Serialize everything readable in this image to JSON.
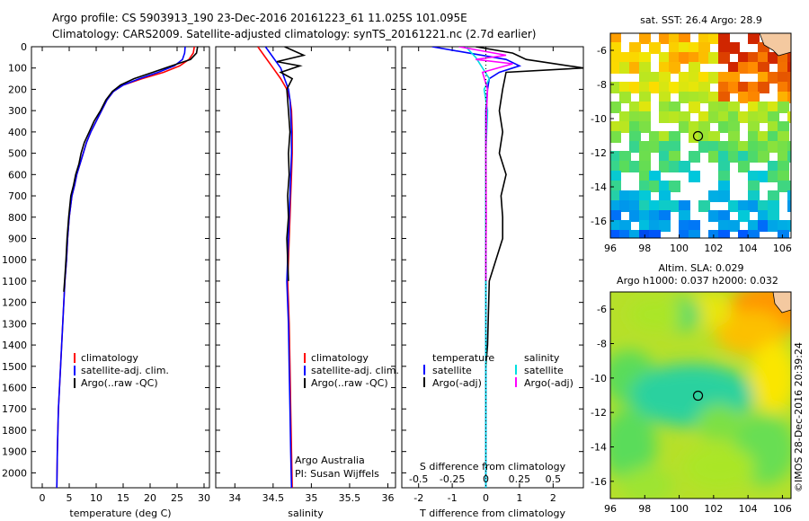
{
  "header": {
    "line1": "Argo profile: CS 5903913_190 23-Dec-2016 20161223_61 11.025S 101.095E",
    "line2": "Climatology: CARS2009. Satellite-adjusted climatology: synTS_20161221.nc (2.7d earlier)"
  },
  "side_label": "©IMOS 28-Dec-2016 20:39:24",
  "colors": {
    "climatology": "#ff0000",
    "satellite": "#0000ff",
    "argo": "#000000",
    "cyan": "#00e0e0",
    "magenta": "#ff00ff"
  },
  "chart_data": [
    {
      "type": "line",
      "id": "temperature",
      "xlabel": "temperature (deg C)",
      "ylabel": "",
      "xlim": [
        -2,
        31
      ],
      "ylim": [
        2070,
        0
      ],
      "xticks": [
        0,
        5,
        10,
        15,
        20,
        25,
        30
      ],
      "yticks": [
        0,
        100,
        200,
        300,
        400,
        500,
        600,
        700,
        800,
        900,
        1000,
        1100,
        1200,
        1300,
        1400,
        1500,
        1600,
        1700,
        1800,
        1900,
        2000
      ],
      "legend": [
        "climatology",
        "satellite-adj. clim.",
        "Argo(..raw -QC)"
      ],
      "series": [
        {
          "name": "climatology",
          "color": "#ff0000",
          "x": [
            28.2,
            28.0,
            27.2,
            25.5,
            22.5,
            18.5,
            15.0,
            13.2,
            12.0,
            11.0,
            10.0,
            9.0,
            8.2,
            7.6,
            7.0,
            6.4,
            6.0,
            5.5,
            5.0,
            4.7,
            4.5,
            4.2,
            4.0,
            3.8,
            3.6,
            3.4,
            3.2,
            3.0,
            2.9,
            2.8,
            2.7
          ],
          "y": [
            0,
            30,
            60,
            90,
            120,
            150,
            180,
            210,
            250,
            300,
            350,
            400,
            450,
            500,
            550,
            600,
            650,
            700,
            800,
            900,
            1000,
            1100,
            1200,
            1300,
            1400,
            1500,
            1600,
            1700,
            1800,
            1900,
            2070
          ]
        },
        {
          "name": "satellite-adj. clim.",
          "color": "#0000ff",
          "x": [
            26.5,
            26.4,
            26.0,
            24.5,
            21.5,
            18.0,
            15.0,
            13.2,
            12.0,
            11.0,
            10.0,
            9.0,
            8.2,
            7.6,
            7.0,
            6.4,
            6.0,
            5.5,
            5.0,
            4.7,
            4.5,
            4.2,
            4.0,
            3.8,
            3.6,
            3.4,
            3.2,
            3.0,
            2.9,
            2.8,
            2.7
          ],
          "y": [
            0,
            30,
            60,
            90,
            120,
            150,
            180,
            210,
            250,
            300,
            350,
            400,
            450,
            500,
            550,
            600,
            650,
            700,
            800,
            900,
            1000,
            1100,
            1200,
            1300,
            1400,
            1500,
            1600,
            1700,
            1800,
            1900,
            2070
          ]
        },
        {
          "name": "Argo(..raw -QC)",
          "color": "#000000",
          "x": [
            28.8,
            28.6,
            27.5,
            24.0,
            20.5,
            17.0,
            14.5,
            13.0,
            11.8,
            10.8,
            9.6,
            8.7,
            7.8,
            7.2,
            6.8,
            6.2,
            5.8,
            5.3,
            4.9,
            4.6,
            4.4,
            4.2,
            4.0
          ],
          "y": [
            0,
            30,
            60,
            90,
            120,
            150,
            180,
            210,
            250,
            300,
            350,
            400,
            450,
            500,
            550,
            600,
            650,
            700,
            800,
            900,
            1000,
            1080,
            1150
          ]
        }
      ]
    },
    {
      "type": "line",
      "id": "salinity",
      "xlabel": "salinity",
      "xlim": [
        33.75,
        36.1
      ],
      "ylim": [
        2070,
        0
      ],
      "xticks": [
        34,
        34.5,
        35,
        35.5,
        36
      ],
      "legend": [
        "climatology",
        "satellite-adj. clim.",
        "Argo(..raw -QC)"
      ],
      "annotation": [
        "Argo Australia",
        "PI: Susan Wijffels"
      ],
      "series": [
        {
          "name": "climatology",
          "color": "#ff0000",
          "x": [
            34.3,
            34.4,
            34.5,
            34.6,
            34.68,
            34.72,
            34.74,
            34.75,
            34.75,
            34.74,
            34.73,
            34.72,
            34.71,
            34.7,
            34.69,
            34.7,
            34.71,
            34.72,
            34.73,
            34.74,
            34.75
          ],
          "y": [
            0,
            50,
            100,
            150,
            200,
            250,
            300,
            400,
            500,
            600,
            700,
            800,
            900,
            1000,
            1100,
            1200,
            1300,
            1500,
            1700,
            1900,
            2070
          ]
        },
        {
          "name": "satellite-adj. clim.",
          "color": "#0000ff",
          "x": [
            34.4,
            34.5,
            34.6,
            34.65,
            34.7,
            34.72,
            34.73,
            34.74,
            34.74,
            34.73,
            34.72,
            34.71,
            34.7,
            34.69,
            34.68,
            34.69,
            34.7,
            34.71,
            34.72,
            34.73,
            34.74
          ],
          "y": [
            0,
            50,
            100,
            150,
            200,
            250,
            300,
            400,
            500,
            600,
            700,
            800,
            900,
            1000,
            1100,
            1200,
            1300,
            1500,
            1700,
            1900,
            2070
          ]
        },
        {
          "name": "Argo(..raw -QC)",
          "color": "#000000",
          "x": [
            34.65,
            34.9,
            34.55,
            34.85,
            34.6,
            34.75,
            34.68,
            34.7,
            34.72,
            34.7,
            34.71,
            34.69,
            34.7,
            34.68,
            34.69,
            34.7
          ],
          "y": [
            0,
            40,
            70,
            90,
            120,
            150,
            200,
            300,
            400,
            500,
            600,
            700,
            800,
            900,
            1000,
            1100
          ]
        }
      ]
    },
    {
      "type": "line",
      "id": "difference",
      "xlabel": "T difference from climatology",
      "title_bottom": "S difference from climatology",
      "xlim": [
        -2.5,
        2.9
      ],
      "ylim": [
        2070,
        0
      ],
      "xticks_top": [
        -0.5,
        -0.25,
        0,
        0.25,
        0.5
      ],
      "xticks": [
        -2,
        -1,
        0,
        1,
        2
      ],
      "legend_t": [
        "temperature",
        "satellite",
        "Argo(-adj)"
      ],
      "legend_s": [
        "salinity",
        "satellite",
        "Argo(-adj)"
      ],
      "series": [
        {
          "name": "T satellite",
          "color": "#0000ff",
          "x": [
            -1.6,
            -0.5,
            0.6,
            1.0,
            0.4,
            0.1,
            0.05,
            0.0,
            0.0,
            0.0,
            0.0,
            0.0,
            0.0,
            0.0,
            0.0
          ],
          "y": [
            0,
            30,
            60,
            90,
            120,
            150,
            200,
            300,
            500,
            800,
            1000,
            1300,
            1600,
            1900,
            2070
          ]
        },
        {
          "name": "T Argo(-adj)",
          "color": "#000000",
          "x": [
            -0.3,
            0.8,
            1.2,
            2.9,
            0.6,
            0.5,
            0.4,
            0.5,
            0.4,
            0.6,
            0.45,
            0.5,
            0.5,
            0.4,
            0.1,
            0.05,
            0.0
          ],
          "y": [
            0,
            30,
            60,
            100,
            120,
            200,
            300,
            400,
            500,
            600,
            700,
            800,
            900,
            950,
            1100,
            1400,
            1500
          ]
        },
        {
          "name": "S satellite",
          "color": "#00e0e0",
          "x": [
            -0.6,
            -0.3,
            -0.1,
            0.1,
            -0.05,
            0.05,
            0.0,
            0.0,
            0.0,
            0.0,
            0.0,
            0.0
          ],
          "y": [
            0,
            50,
            100,
            150,
            200,
            300,
            500,
            800,
            1000,
            1300,
            1600,
            2070
          ]
        },
        {
          "name": "S Argo(-adj)",
          "color": "#ff00ff",
          "x": [
            -0.8,
            0.6,
            -0.3,
            0.8,
            -0.1,
            0.05,
            0.02,
            0.0,
            0.01,
            0.0,
            0.0
          ],
          "y": [
            0,
            40,
            60,
            80,
            120,
            200,
            300,
            500,
            800,
            1000,
            1100
          ]
        }
      ]
    },
    {
      "type": "heatmap",
      "id": "sst_map",
      "title": "sat. SST: 26.4 Argo: 28.9",
      "xlim": [
        96,
        106.5
      ],
      "ylim": [
        -17,
        -5
      ],
      "xticks": [
        96,
        98,
        100,
        102,
        104,
        106
      ],
      "yticks": [
        -6,
        -8,
        -10,
        -12,
        -14,
        -16
      ],
      "float_position": {
        "lon": 101.095,
        "lat": -11.025
      }
    },
    {
      "type": "heatmap",
      "id": "sla_map",
      "title": "Altim. SLA: 0.029",
      "subtitle": "Argo h1000: 0.037 h2000: 0.032",
      "xlim": [
        96,
        106.5
      ],
      "ylim": [
        -17,
        -5
      ],
      "xticks": [
        96,
        98,
        100,
        102,
        104,
        106
      ],
      "yticks": [
        -6,
        -8,
        -10,
        -12,
        -14,
        -16
      ],
      "float_position": {
        "lon": 101.095,
        "lat": -11.025
      }
    }
  ]
}
